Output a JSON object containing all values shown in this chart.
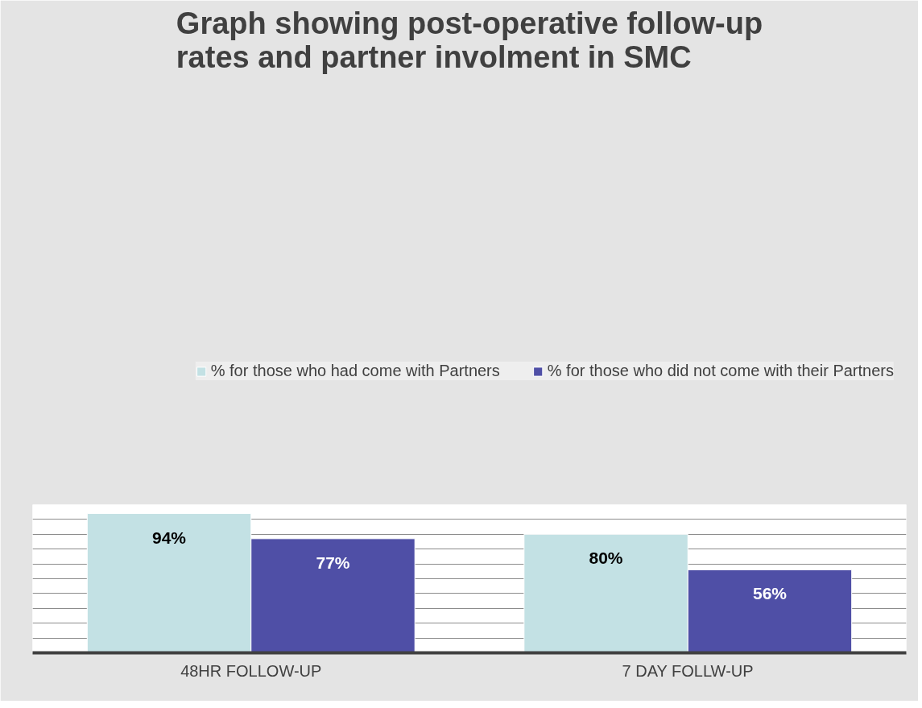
{
  "chart_data": {
    "type": "bar",
    "title": "Graph showing post-operative follow-up rates and partner involment in SMC",
    "categories": [
      "48HR FOLLOW-UP",
      "7 DAY FOLLW-UP"
    ],
    "series": [
      {
        "name": "% for those who had come with Partners",
        "color": "#c3e1e4",
        "values": [
          94,
          80
        ],
        "value_labels": [
          "94%",
          "80%"
        ]
      },
      {
        "name": "% for those who did not come with their Partners",
        "color": "#4f4fa6",
        "values": [
          77,
          56
        ],
        "value_labels": [
          "77%",
          "56%"
        ]
      }
    ],
    "ylim": [
      0,
      100
    ],
    "yticks": [
      {
        "value": 10,
        "label": null
      },
      {
        "value": 20,
        "label": null
      },
      {
        "value": 30,
        "label": null
      },
      {
        "value": 40,
        "label": null
      },
      {
        "value": 50,
        "label": null
      },
      {
        "value": 60,
        "label": null
      },
      {
        "value": 70,
        "label": null
      },
      {
        "value": 80,
        "label": null
      },
      {
        "value": 90,
        "label": null
      }
    ],
    "tick_labels": "x",
    "grid": "y",
    "legend": "top"
  }
}
